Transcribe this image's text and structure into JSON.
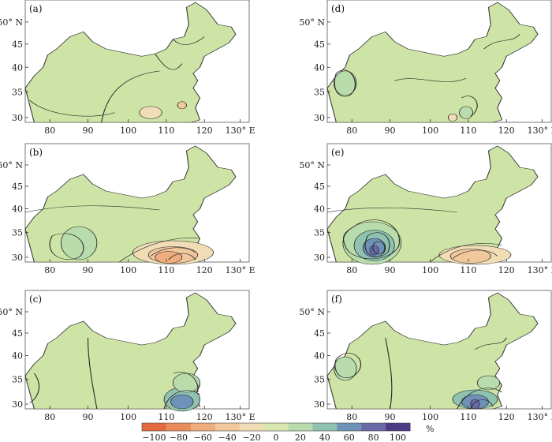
{
  "panels": [
    {
      "label": "(a)"
    },
    {
      "label": "(b)"
    },
    {
      "label": "(c)"
    },
    {
      "label": "(d)"
    },
    {
      "label": "(e)"
    },
    {
      "label": "(f)"
    }
  ],
  "axes": {
    "y_ticks": [
      "50° N",
      "45",
      "40",
      "35",
      "30"
    ],
    "x_ticks": [
      "80",
      "90",
      "100",
      "110",
      "120",
      "130° E"
    ]
  },
  "colorbar": {
    "unit": "%",
    "ticks": [
      "−100",
      "−80",
      "−60",
      "−40",
      "−20",
      "0",
      "20",
      "40",
      "60",
      "80",
      "100"
    ],
    "colors": [
      "#e26a3e",
      "#ea8d5c",
      "#efac7d",
      "#f1c79c",
      "#f1ddb5",
      "#d9e8b0",
      "#b9dcac",
      "#8fc3b0",
      "#6f92b8",
      "#6a6aa8",
      "#4b3a86"
    ]
  },
  "colors": {
    "land": "#cde4a6",
    "frame": "#555555",
    "contour": "#2b2b2b"
  }
}
